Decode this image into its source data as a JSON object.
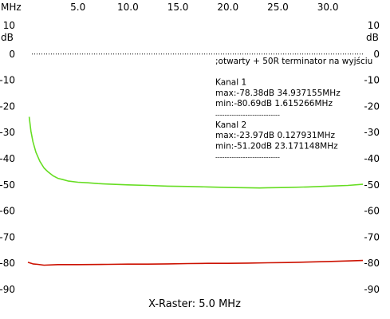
{
  "chart_data": {
    "type": "line",
    "xlabel": "X-Raster: 5.0 MHz",
    "x_unit": "MHz",
    "y_unit": "dB",
    "xlim": [
      0.0,
      33.5
    ],
    "ylim": [
      -90,
      10
    ],
    "x_ticks": [
      5.0,
      10.0,
      15.0,
      20.0,
      25.0,
      30.0
    ],
    "x_tick_labels": [
      "5.0",
      "10.0",
      "15.0",
      "20.0",
      "25.0",
      "30.0"
    ],
    "y_ticks": [
      10,
      0,
      -10,
      -20,
      -30,
      -40,
      -50,
      -60,
      -70,
      -80,
      -90
    ],
    "y_tick_labels": [
      "10",
      "0",
      "-10",
      "-20",
      "-30",
      "-40",
      "-50",
      "-60",
      "-70",
      "-80",
      "-90"
    ],
    "reference_line_y": 0,
    "grid": false,
    "annotation": {
      "lines": [
        ";otwarty + 50R terminator na wyjściu",
        "",
        "Kanal 1",
        "max:-78.38dB 34.937155MHz",
        "min:-80.69dB 1.615266MHz",
        "----------------------------",
        "Kanal 2",
        "max:-23.97dB 0.127931MHz",
        "min:-51.20dB 23.171148MHz",
        "----------------------------"
      ]
    },
    "series": [
      {
        "color": "#66dd22",
        "x": [
          0.13,
          0.3,
          0.5,
          0.8,
          1.2,
          1.6,
          2.0,
          2.5,
          3.0,
          3.5,
          4.0,
          5.0,
          6.0,
          7.0,
          8.0,
          10.0,
          12.0,
          14.0,
          16.0,
          18.0,
          20.0,
          22.0,
          23.17,
          24.0,
          26.0,
          28.0,
          30.0,
          32.0,
          33.5
        ],
        "y": [
          -24.0,
          -29.5,
          -33.5,
          -37.5,
          -41.0,
          -43.5,
          -45.0,
          -46.5,
          -47.5,
          -48.0,
          -48.5,
          -49.0,
          -49.2,
          -49.5,
          -49.7,
          -50.0,
          -50.2,
          -50.5,
          -50.6,
          -50.8,
          -51.0,
          -51.1,
          -51.2,
          -51.1,
          -51.0,
          -50.8,
          -50.5,
          -50.2,
          -49.8
        ]
      },
      {
        "color": "#cc1100",
        "x": [
          0.0,
          0.5,
          1.0,
          1.615,
          3.0,
          5.0,
          8.0,
          10.0,
          12.0,
          14.0,
          16.0,
          18.0,
          20.0,
          22.0,
          24.0,
          26.0,
          28.0,
          30.0,
          32.0,
          33.5
        ],
        "y": [
          -79.6,
          -80.2,
          -80.4,
          -80.69,
          -80.5,
          -80.5,
          -80.4,
          -80.3,
          -80.3,
          -80.2,
          -80.1,
          -80.0,
          -80.0,
          -79.9,
          -79.8,
          -79.7,
          -79.5,
          -79.3,
          -79.1,
          -78.9
        ]
      }
    ]
  }
}
